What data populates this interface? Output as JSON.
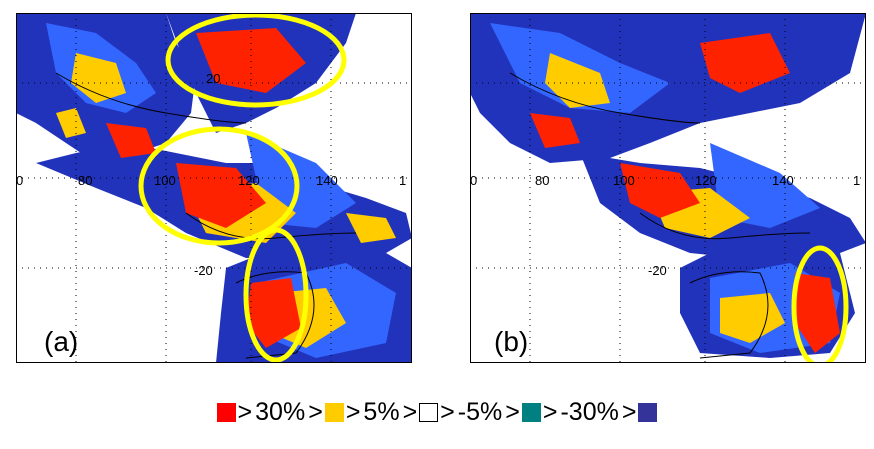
{
  "panels": [
    {
      "label": "(a)",
      "lon_ticks": [
        "0",
        "80",
        "100",
        "120",
        "140",
        "1"
      ],
      "lat_ticks": [
        "20",
        "-20"
      ]
    },
    {
      "label": "(b)",
      "lon_ticks": [
        "0",
        "80",
        "100",
        "120",
        "140",
        "1"
      ],
      "lat_ticks": [
        "-20"
      ]
    }
  ],
  "legend": {
    "separator": ">",
    "colors": [
      "#ff0000",
      "#ffcc00",
      "#ffffff",
      "#008080",
      "#333399"
    ],
    "thresholds": [
      "30%",
      "5%",
      "-5%",
      "-30%"
    ]
  },
  "highlight_color": "#ffff00"
}
